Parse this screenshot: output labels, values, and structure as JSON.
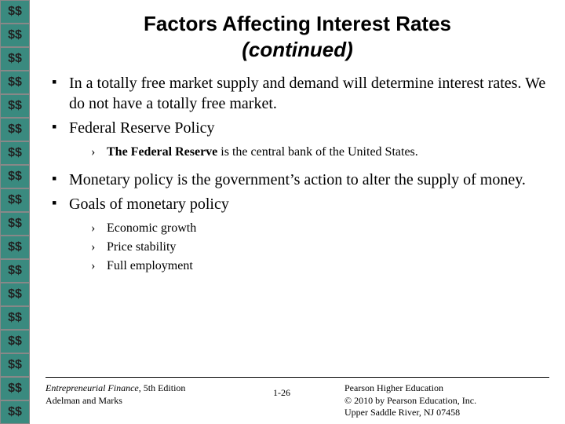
{
  "sidebar": {
    "symbol": "$$",
    "count": 18,
    "bg_color": "#3a8a7f"
  },
  "title": {
    "line1": "Factors Affecting Interest Rates",
    "line2": "(continued)"
  },
  "bullets_group1": [
    {
      "text": "In a totally free market supply and demand will determine interest rates. We do not have a totally free market.",
      "sub": []
    },
    {
      "text": "Federal Reserve Policy",
      "sub": [
        {
          "prefix_bold": "The Federal Reserve",
          "rest": " is the central bank of the United States."
        }
      ]
    }
  ],
  "bullets_group2": [
    {
      "text": "Monetary policy is the government’s action to alter the supply of money.",
      "sub": []
    },
    {
      "text": "Goals of monetary policy",
      "sub": [
        {
          "rest": "Economic growth"
        },
        {
          "rest": "Price stability"
        },
        {
          "rest": "Full employment"
        }
      ]
    }
  ],
  "footer": {
    "left_italic": "Entrepreneurial Finance",
    "left_rest": ", 5th Edition",
    "left_line2": "Adelman and Marks",
    "center": "1-26",
    "right_line1": "Pearson Higher Education",
    "right_line2": "© 2010 by Pearson Education, Inc.",
    "right_line3": "Upper Saddle River, NJ 07458"
  }
}
